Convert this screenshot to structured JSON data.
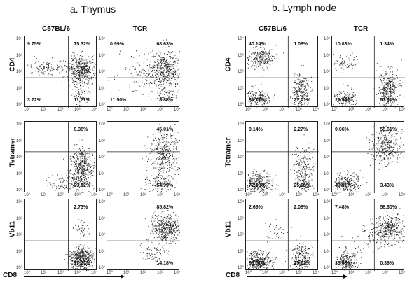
{
  "panels": [
    {
      "title": "a. Thymus",
      "columns": [
        "C57BL/6",
        "TCR"
      ]
    },
    {
      "title": "b. Lymph node",
      "columns": [
        "C57BL/6",
        "TCR"
      ]
    }
  ],
  "row_labels": [
    "CD4",
    "Tetramer",
    "Vb11"
  ],
  "x_axis_label": "CD8",
  "tick_labels": [
    "10°",
    "10¹",
    "10²",
    "10³",
    "10⁴"
  ],
  "plots": [
    {
      "id": "thy-c57-cd4",
      "quadrants": {
        "ul": "9.75%",
        "ur": "75.32%",
        "ll": "3.72%",
        "lr": "11.21%"
      }
    },
    {
      "id": "thy-tcr-cd4",
      "quadrants": {
        "ul": "0.99%",
        "ur": "68.63%",
        "ll": "11.50%",
        "lr": "18.88%"
      }
    },
    {
      "id": "thy-c57-tet",
      "quadrants": {
        "ul": "",
        "ur": "6.38%",
        "ll": "",
        "lr": "93.62%"
      }
    },
    {
      "id": "thy-tcr-tet",
      "quadrants": {
        "ul": "",
        "ur": "45.01%",
        "ll": "",
        "lr": "54.99%"
      }
    },
    {
      "id": "thy-c57-vb11",
      "quadrants": {
        "ul": "",
        "ur": "2.73%",
        "ll": "",
        "lr": "97.27%"
      }
    },
    {
      "id": "thy-tcr-vb11",
      "quadrants": {
        "ul": "",
        "ur": "85.82%",
        "ll": "",
        "lr": "14.18%"
      }
    },
    {
      "id": "ln-c57-cd4",
      "quadrants": {
        "ul": "40.14%",
        "ur": "1.08%",
        "ll": "31.77%",
        "lr": "27.01%"
      }
    },
    {
      "id": "ln-tcr-cd4",
      "quadrants": {
        "ul": "10.83%",
        "ur": "1.34%",
        "ll": "29.92%",
        "lr": "57.91%"
      }
    },
    {
      "id": "ln-c57-tet",
      "quadrants": {
        "ul": "0.14%",
        "ur": "2.27%",
        "ll": "72.00%",
        "lr": "25.60%"
      }
    },
    {
      "id": "ln-tcr-tet",
      "quadrants": {
        "ul": "0.06%",
        "ur": "55.61%",
        "ll": "40.91%",
        "lr": "3.43%"
      }
    },
    {
      "id": "ln-c57-vb11",
      "quadrants": {
        "ul": "2.69%",
        "ur": "2.08%",
        "ll": "69.51%",
        "lr": "25.72%"
      }
    },
    {
      "id": "ln-tcr-vb11",
      "quadrants": {
        "ul": "7.48%",
        "ur": "58.60%",
        "ll": "33.53%",
        "lr": "0.39%"
      }
    }
  ]
}
